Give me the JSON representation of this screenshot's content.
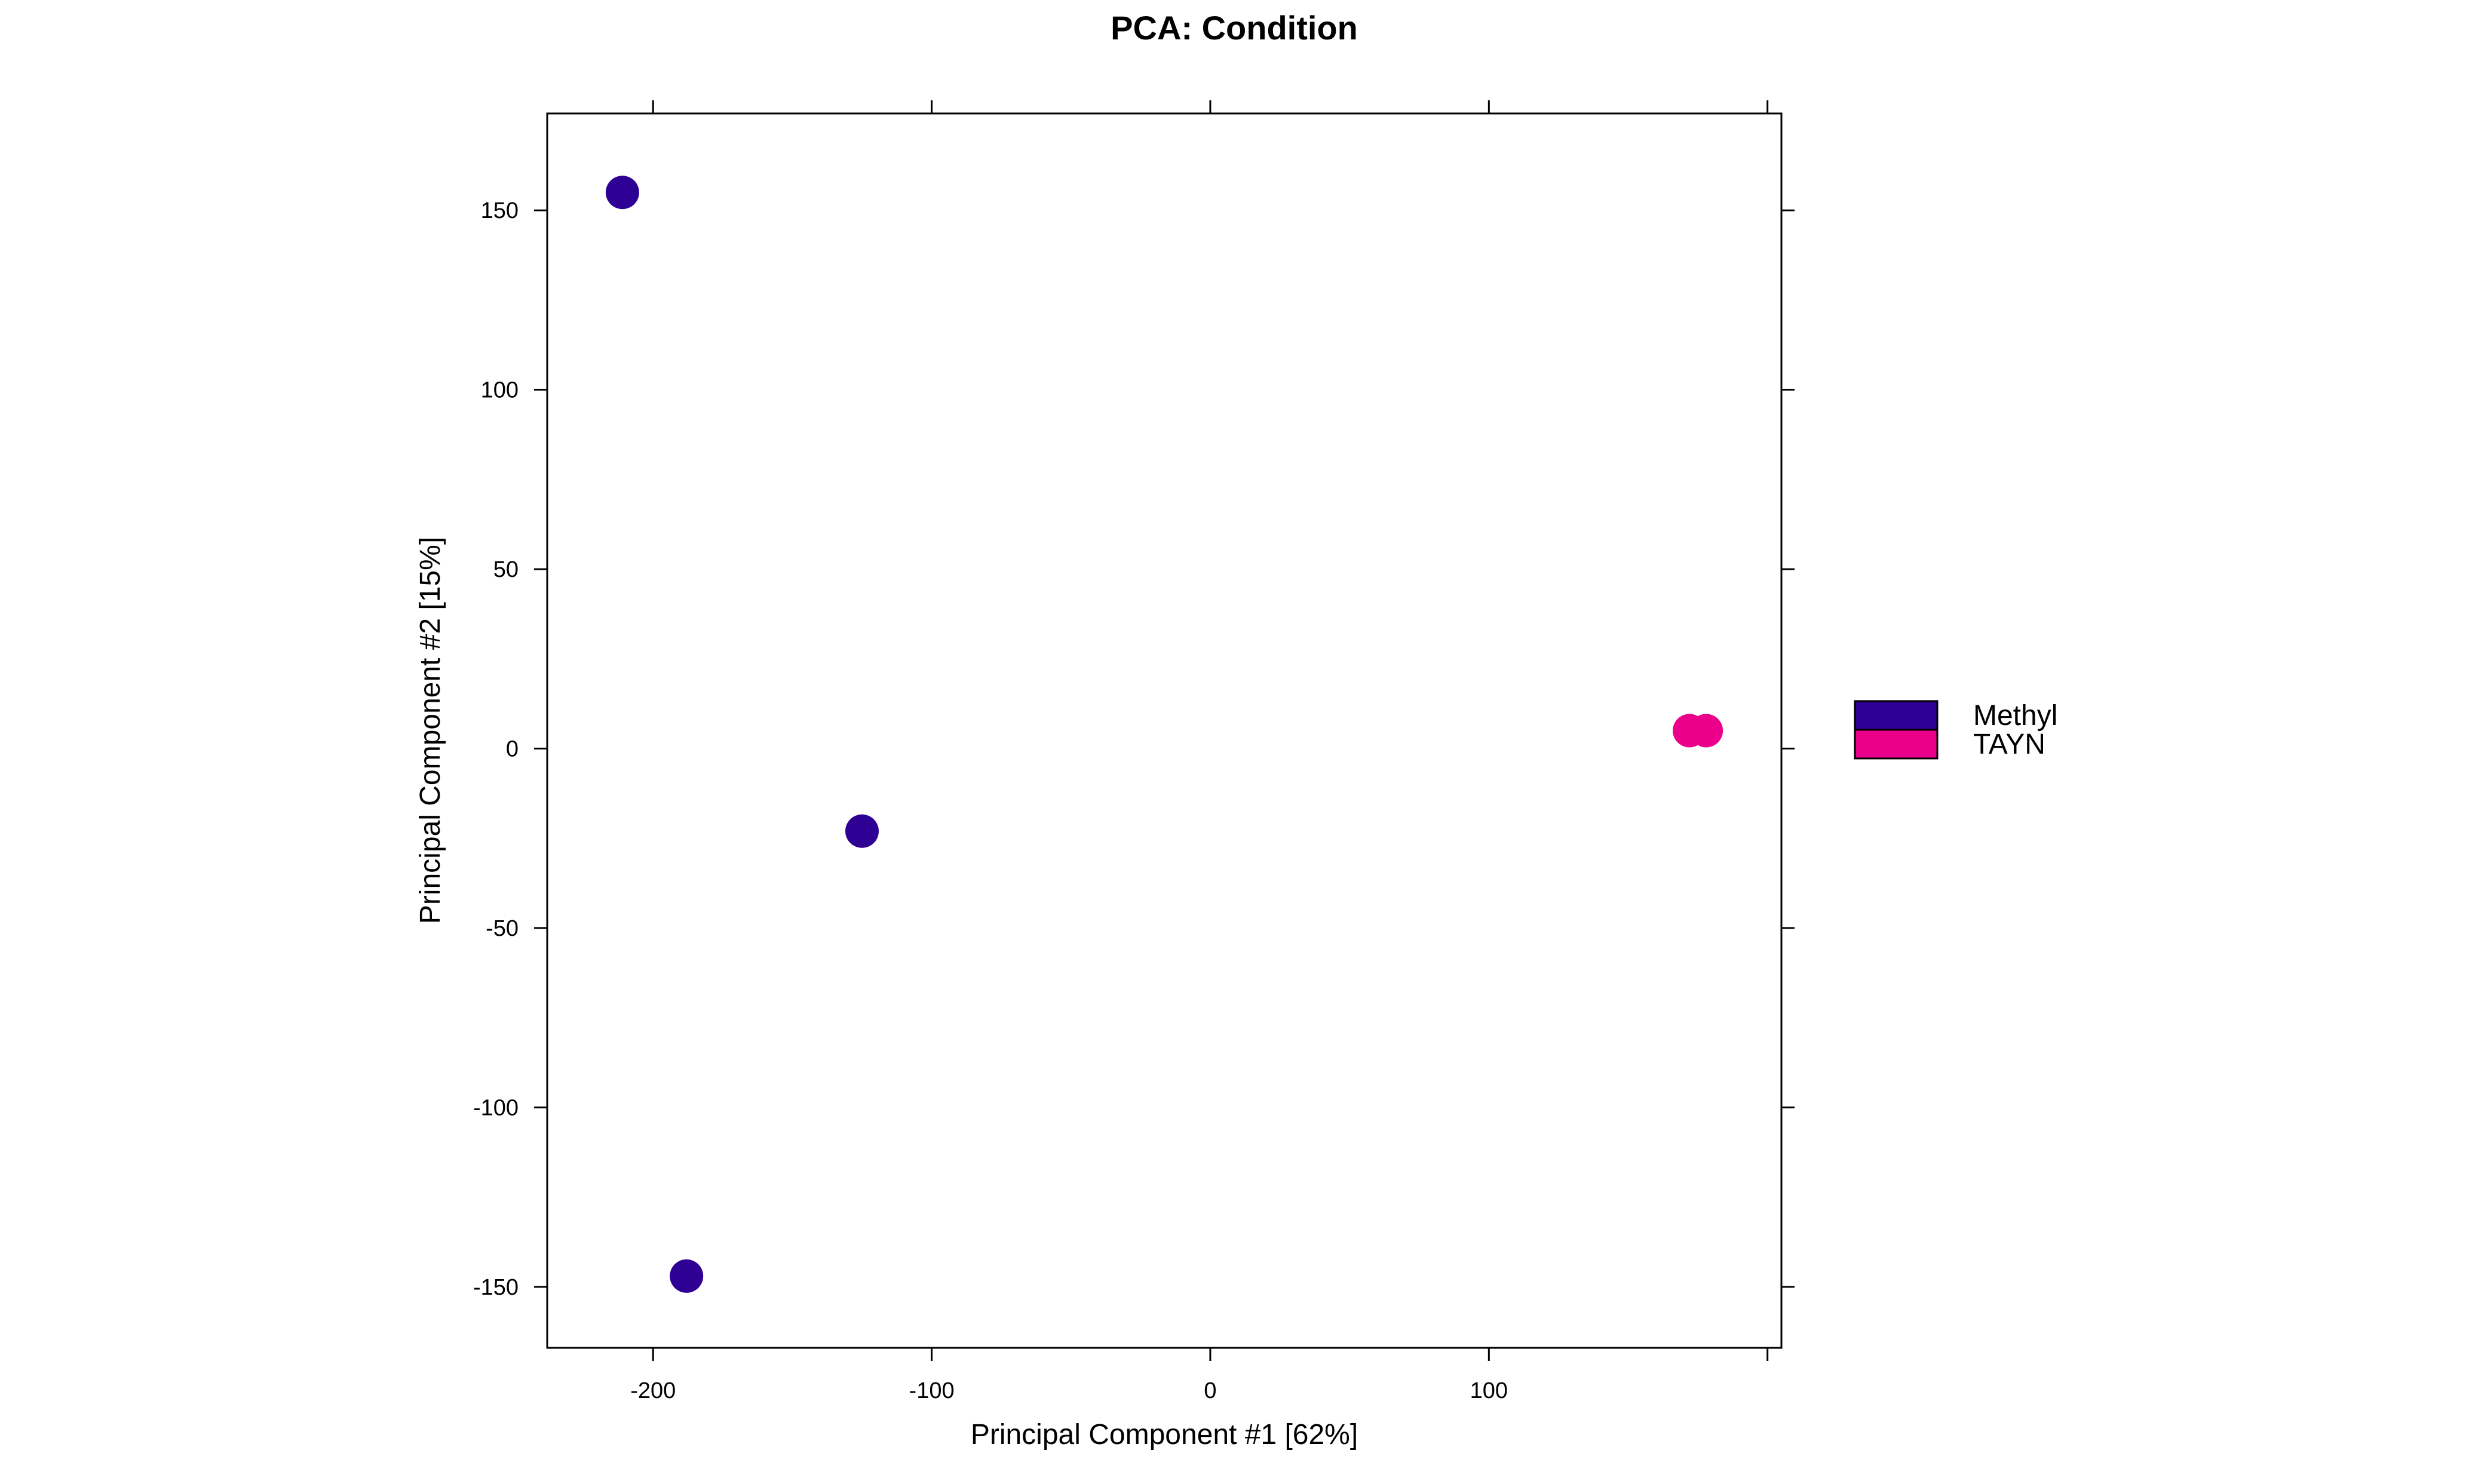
{
  "chart_data": {
    "type": "scatter",
    "title": "PCA: Condition",
    "xlabel": "Principal Component #1 [62%]",
    "ylabel": "Principal Component #2 [15%]",
    "xlim": [
      -238,
      205
    ],
    "ylim": [
      -167,
      177
    ],
    "xticks": [
      -200,
      -100,
      0,
      100
    ],
    "yticks": [
      150,
      100,
      50,
      0,
      -50,
      -100,
      -150
    ],
    "grid": false,
    "legend_position": "right",
    "series": [
      {
        "name": "Methyl",
        "color": "#2E0094",
        "points": [
          {
            "x": -211,
            "y": 155
          },
          {
            "x": -125,
            "y": -23
          },
          {
            "x": -188,
            "y": -147
          }
        ]
      },
      {
        "name": "TAYN",
        "color": "#EB008B",
        "points": [
          {
            "x": 172,
            "y": 5
          },
          {
            "x": 178,
            "y": 5
          }
        ]
      }
    ]
  }
}
